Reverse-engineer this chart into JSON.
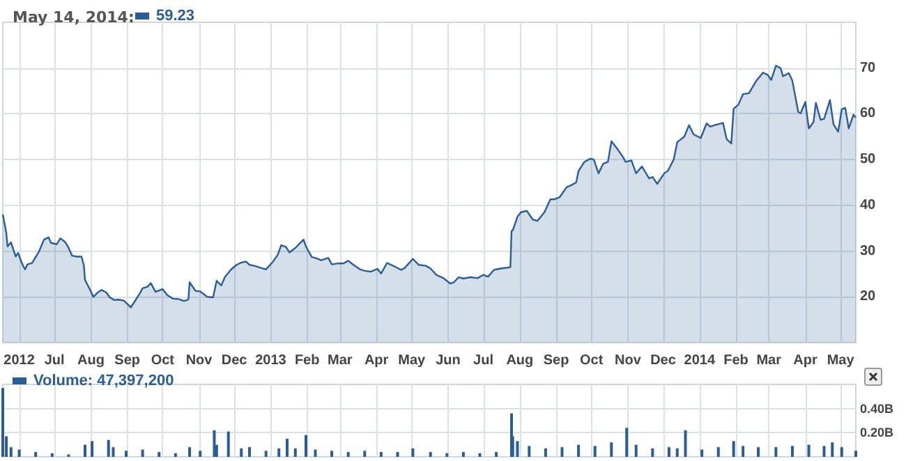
{
  "chart_data": [
    {
      "type": "area",
      "title": "May 14, 2014:",
      "legend": "top left",
      "grid": true,
      "xlim": [
        "2012-05-18",
        "2014-05-14"
      ],
      "xticks": [
        {
          "value": "2012-06-01",
          "label": "2012"
        },
        {
          "value": "2012-07-01",
          "label": "Jul"
        },
        {
          "value": "2012-08-01",
          "label": "Aug"
        },
        {
          "value": "2012-09-01",
          "label": "Sep"
        },
        {
          "value": "2012-10-01",
          "label": "Oct"
        },
        {
          "value": "2012-11-01",
          "label": "Nov"
        },
        {
          "value": "2012-12-01",
          "label": "Dec"
        },
        {
          "value": "2013-01-01",
          "label": "2013"
        },
        {
          "value": "2013-02-01",
          "label": "Feb"
        },
        {
          "value": "2013-03-01",
          "label": "Mar"
        },
        {
          "value": "2013-04-01",
          "label": "Apr"
        },
        {
          "value": "2013-05-01",
          "label": "May"
        },
        {
          "value": "2013-06-01",
          "label": "Jun"
        },
        {
          "value": "2013-07-01",
          "label": "Jul"
        },
        {
          "value": "2013-08-01",
          "label": "Aug"
        },
        {
          "value": "2013-09-01",
          "label": "Sep"
        },
        {
          "value": "2013-10-01",
          "label": "Oct"
        },
        {
          "value": "2013-11-01",
          "label": "Nov"
        },
        {
          "value": "2013-12-01",
          "label": "Dec"
        },
        {
          "value": "2014-01-01",
          "label": "2014"
        },
        {
          "value": "2014-02-01",
          "label": "Feb"
        },
        {
          "value": "2014-03-01",
          "label": "Mar"
        },
        {
          "value": "2014-04-01",
          "label": "Apr"
        },
        {
          "value": "2014-05-01",
          "label": "May"
        }
      ],
      "ylim": [
        10,
        80
      ],
      "yticks": [
        20,
        30,
        40,
        50,
        60,
        70
      ],
      "series": [
        {
          "name": "59.23",
          "color": "#2a5d96",
          "x": [
            "2012-05-18",
            "2012-05-21",
            "2012-05-22",
            "2012-05-25",
            "2012-05-29",
            "2012-05-31",
            "2012-06-04",
            "2012-06-06",
            "2012-06-08",
            "2012-06-12",
            "2012-06-18",
            "2012-06-22",
            "2012-06-26",
            "2012-06-28",
            "2012-07-03",
            "2012-07-06",
            "2012-07-10",
            "2012-07-13",
            "2012-07-16",
            "2012-07-20",
            "2012-07-24",
            "2012-07-26",
            "2012-07-27",
            "2012-07-31",
            "2012-08-03",
            "2012-08-07",
            "2012-08-10",
            "2012-08-14",
            "2012-08-17",
            "2012-08-21",
            "2012-08-24",
            "2012-08-29",
            "2012-09-04",
            "2012-09-07",
            "2012-09-12",
            "2012-09-14",
            "2012-09-18",
            "2012-09-21",
            "2012-09-25",
            "2012-10-01",
            "2012-10-05",
            "2012-10-10",
            "2012-10-15",
            "2012-10-19",
            "2012-10-22",
            "2012-10-23",
            "2012-10-24",
            "2012-10-29",
            "2012-11-02",
            "2012-11-08",
            "2012-11-13",
            "2012-11-16",
            "2012-11-20",
            "2012-11-23",
            "2012-11-28",
            "2012-12-03",
            "2012-12-07",
            "2012-12-11",
            "2012-12-14",
            "2012-12-18",
            "2012-12-24",
            "2012-12-28",
            "2013-01-03",
            "2013-01-07",
            "2013-01-10",
            "2013-01-14",
            "2013-01-17",
            "2013-01-22",
            "2013-01-25",
            "2013-01-29",
            "2013-01-31",
            "2013-02-05",
            "2013-02-08",
            "2013-02-13",
            "2013-02-19",
            "2013-02-22",
            "2013-02-27",
            "2013-03-04",
            "2013-03-08",
            "2013-03-13",
            "2013-03-18",
            "2013-03-22",
            "2013-03-27",
            "2013-04-02",
            "2013-04-05",
            "2013-04-10",
            "2013-04-16",
            "2013-04-22",
            "2013-04-25",
            "2013-05-02",
            "2013-05-07",
            "2013-05-13",
            "2013-05-17",
            "2013-05-22",
            "2013-05-28",
            "2013-06-03",
            "2013-06-06",
            "2013-06-10",
            "2013-06-14",
            "2013-06-20",
            "2013-06-26",
            "2013-07-01",
            "2013-07-05",
            "2013-07-10",
            "2013-07-16",
            "2013-07-22",
            "2013-07-24",
            "2013-07-25",
            "2013-07-26",
            "2013-07-30",
            "2013-08-02",
            "2013-08-07",
            "2013-08-12",
            "2013-08-16",
            "2013-08-22",
            "2013-08-27",
            "2013-08-30",
            "2013-09-04",
            "2013-09-10",
            "2013-09-13",
            "2013-09-18",
            "2013-09-20",
            "2013-09-25",
            "2013-09-30",
            "2013-10-03",
            "2013-10-07",
            "2013-10-11",
            "2013-10-15",
            "2013-10-18",
            "2013-10-22",
            "2013-10-28",
            "2013-10-30",
            "2013-11-04",
            "2013-11-08",
            "2013-11-13",
            "2013-11-19",
            "2013-11-22",
            "2013-11-26",
            "2013-12-02",
            "2013-12-05",
            "2013-12-10",
            "2013-12-13",
            "2013-12-19",
            "2013-12-23",
            "2013-12-27",
            "2014-01-02",
            "2014-01-07",
            "2014-01-10",
            "2014-01-15",
            "2014-01-21",
            "2014-01-24",
            "2014-01-28",
            "2014-01-30",
            "2014-02-03",
            "2014-02-07",
            "2014-02-12",
            "2014-02-18",
            "2014-02-24",
            "2014-02-28",
            "2014-03-03",
            "2014-03-07",
            "2014-03-11",
            "2014-03-13",
            "2014-03-18",
            "2014-03-21",
            "2014-03-26",
            "2014-03-28",
            "2014-04-01",
            "2014-04-04",
            "2014-04-08",
            "2014-04-10",
            "2014-04-14",
            "2014-04-17",
            "2014-04-22",
            "2014-04-25",
            "2014-04-29",
            "2014-05-02",
            "2014-05-05",
            "2014-05-08",
            "2014-05-12",
            "2014-05-14"
          ],
          "values": [
            38,
            34,
            31,
            31.9,
            28.8,
            29.6,
            26.9,
            26,
            27.1,
            27.4,
            30,
            32.5,
            33,
            31.8,
            31.5,
            32.8,
            32,
            30.7,
            29,
            28.8,
            28.8,
            26.9,
            23.7,
            21.7,
            20,
            21,
            21.5,
            21,
            19.9,
            19.3,
            19.4,
            19.2,
            17.7,
            18.9,
            20.9,
            21.9,
            22.2,
            23,
            21.1,
            21.7,
            20.4,
            19.6,
            19.5,
            19.1,
            19.3,
            19.5,
            23.2,
            21.3,
            21.2,
            20,
            19.9,
            23.5,
            22.5,
            24.3,
            25.9,
            27,
            27.5,
            27.7,
            27,
            26.8,
            26.3,
            26,
            27.7,
            29.2,
            31.3,
            30.9,
            29.7,
            30.7,
            31.5,
            32.5,
            31,
            28.7,
            28.5,
            28,
            28.5,
            27.1,
            27.3,
            27.3,
            27.9,
            26.9,
            26,
            25.7,
            25.5,
            26.1,
            25.1,
            27.4,
            26.7,
            25.9,
            26.3,
            28.3,
            27,
            26.8,
            26.2,
            24.8,
            24.1,
            22.9,
            23.2,
            24.3,
            24,
            24.3,
            24.1,
            24.8,
            24.4,
            25.9,
            26.2,
            26.4,
            26.5,
            34.4,
            34.5,
            37.5,
            38.5,
            38.8,
            36.9,
            36.6,
            38.5,
            41.3,
            41.3,
            41.8,
            44,
            44.3,
            45,
            47.5,
            49.5,
            50.2,
            50,
            47,
            49.1,
            49.5,
            54,
            52.7,
            50.5,
            49.5,
            49.8,
            47,
            48.5,
            45.9,
            46.2,
            44.7,
            47,
            47.5,
            50,
            53.8,
            55,
            57.5,
            55.5,
            54.7,
            57.9,
            57.2,
            57.6,
            58,
            54.5,
            53.5,
            61.1,
            62,
            64.3,
            64.5,
            67.1,
            69,
            68.5,
            67.4,
            70.5,
            70,
            68.2,
            68.9,
            67.2,
            60.4,
            60.1,
            62.6,
            56.8,
            58.2,
            62.4,
            58.7,
            58.9,
            63,
            57.7,
            56.1,
            61,
            61.3,
            56.8,
            59.8,
            59.2
          ]
        }
      ]
    },
    {
      "type": "bar",
      "legend": "top left",
      "grid": true,
      "tick_labels": "y",
      "xlim": [
        "2012-05-18",
        "2014-05-14"
      ],
      "xticks": [
        {
          "value": "2012-06-01",
          "label": null
        },
        {
          "value": "2012-07-01",
          "label": null
        },
        {
          "value": "2012-08-01",
          "label": null
        },
        {
          "value": "2012-09-01",
          "label": null
        },
        {
          "value": "2012-10-01",
          "label": null
        },
        {
          "value": "2012-11-01",
          "label": null
        },
        {
          "value": "2012-12-01",
          "label": null
        },
        {
          "value": "2013-01-01",
          "label": null
        },
        {
          "value": "2013-02-01",
          "label": null
        },
        {
          "value": "2013-03-01",
          "label": null
        },
        {
          "value": "2013-04-01",
          "label": null
        },
        {
          "value": "2013-05-01",
          "label": null
        },
        {
          "value": "2013-06-01",
          "label": null
        },
        {
          "value": "2013-07-01",
          "label": null
        },
        {
          "value": "2013-08-01",
          "label": null
        },
        {
          "value": "2013-09-01",
          "label": null
        },
        {
          "value": "2013-10-01",
          "label": null
        },
        {
          "value": "2013-11-01",
          "label": null
        },
        {
          "value": "2013-12-01",
          "label": null
        },
        {
          "value": "2014-01-01",
          "label": null
        },
        {
          "value": "2014-02-01",
          "label": null
        },
        {
          "value": "2014-03-01",
          "label": null
        },
        {
          "value": "2014-04-01",
          "label": null
        },
        {
          "value": "2014-05-01",
          "label": null
        }
      ],
      "ylim": [
        0,
        0.6
      ],
      "yticks": [
        {
          "value": 0.2,
          "label": "0.20B"
        },
        {
          "value": 0.4,
          "label": "0.40B"
        }
      ],
      "series": [
        {
          "name": "Volume: 47,397,200",
          "color": "#2a5d96",
          "x": [
            "2012-05-18",
            "2012-05-21",
            "2012-05-25",
            "2012-06-01",
            "2012-06-15",
            "2012-06-29",
            "2012-07-13",
            "2012-07-27",
            "2012-08-02",
            "2012-08-16",
            "2012-08-20",
            "2012-08-31",
            "2012-09-14",
            "2012-09-28",
            "2012-10-12",
            "2012-10-24",
            "2012-11-02",
            "2012-11-14",
            "2012-11-16",
            "2012-11-26",
            "2012-12-07",
            "2012-12-14",
            "2012-12-28",
            "2013-01-08",
            "2013-01-15",
            "2013-01-22",
            "2013-01-31",
            "2013-02-08",
            "2013-02-22",
            "2013-03-08",
            "2013-03-22",
            "2013-04-05",
            "2013-04-19",
            "2013-05-02",
            "2013-05-17",
            "2013-05-31",
            "2013-06-14",
            "2013-06-28",
            "2013-07-12",
            "2013-07-25",
            "2013-07-26",
            "2013-07-30",
            "2013-08-09",
            "2013-08-23",
            "2013-09-06",
            "2013-09-20",
            "2013-10-04",
            "2013-10-18",
            "2013-10-31",
            "2013-11-08",
            "2013-11-22",
            "2013-12-06",
            "2013-12-13",
            "2013-12-20",
            "2014-01-03",
            "2014-01-17",
            "2014-01-30",
            "2014-02-07",
            "2014-02-20",
            "2014-03-07",
            "2014-03-21",
            "2014-04-04",
            "2014-04-17",
            "2014-04-24",
            "2014-05-02",
            "2014-05-14"
          ],
          "values": [
            0.57,
            0.17,
            0.08,
            0.06,
            0.04,
            0.03,
            0.02,
            0.1,
            0.13,
            0.14,
            0.08,
            0.05,
            0.06,
            0.04,
            0.03,
            0.08,
            0.05,
            0.22,
            0.1,
            0.21,
            0.07,
            0.08,
            0.05,
            0.07,
            0.15,
            0.07,
            0.18,
            0.06,
            0.05,
            0.04,
            0.05,
            0.04,
            0.04,
            0.07,
            0.04,
            0.03,
            0.04,
            0.03,
            0.04,
            0.36,
            0.17,
            0.13,
            0.09,
            0.07,
            0.08,
            0.1,
            0.09,
            0.12,
            0.24,
            0.1,
            0.07,
            0.08,
            0.07,
            0.22,
            0.06,
            0.08,
            0.13,
            0.09,
            0.08,
            0.08,
            0.09,
            0.1,
            0.09,
            0.12,
            0.08,
            0.05
          ]
        }
      ]
    }
  ]
}
